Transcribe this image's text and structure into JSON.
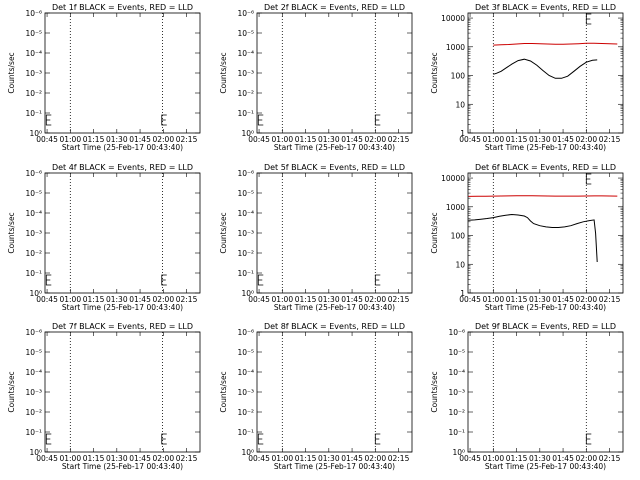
{
  "chart_data": [
    {
      "type": "line",
      "title": "Det 1f BLACK = Events, RED = LLD",
      "xlabel": "Start Time (25-Feb-17 00:43:40)",
      "ylabel": "Counts/sec",
      "x_ticks": [
        "00:45",
        "01:00",
        "01:15",
        "01:30",
        "01:45",
        "02:00",
        "02:15"
      ],
      "y_ticks": [
        "10⁰",
        "10⁻¹",
        "10⁻²",
        "10⁻³",
        "10⁻⁴",
        "10⁻⁵",
        "10⁻⁶"
      ],
      "x_range_min": [
        43.67,
        143.67
      ],
      "y_log": false,
      "vlines_min": [
        60.0,
        119.5
      ],
      "e_markers_min": [
        44.5,
        119.0
      ],
      "series": []
    },
    {
      "type": "line",
      "title": "Det 2f BLACK = Events, RED = LLD",
      "xlabel": "Start Time (25-Feb-17 00:43:40)",
      "ylabel": "Counts/sec",
      "x_ticks": [
        "00:45",
        "01:00",
        "01:15",
        "01:30",
        "01:45",
        "02:00",
        "02:15"
      ],
      "y_ticks": [
        "10⁰",
        "10⁻¹",
        "10⁻²",
        "10⁻³",
        "10⁻⁴",
        "10⁻⁵",
        "10⁻⁶"
      ],
      "x_range_min": [
        43.67,
        143.67
      ],
      "y_log": false,
      "vlines_min": [
        60.0,
        120.0
      ],
      "e_markers_min": [
        44.5,
        120.0
      ],
      "series": []
    },
    {
      "type": "line",
      "title": "Det 3f BLACK = Events, RED = LLD",
      "xlabel": "Start Time (25-Feb-17 00:43:40)",
      "ylabel": "Counts/sec",
      "x_ticks": [
        "00:45",
        "01:00",
        "01:15",
        "01:30",
        "01:45",
        "02:00",
        "02:15"
      ],
      "y_ticks": [
        "1",
        "10",
        "100",
        "1000",
        "10000"
      ],
      "x_range_min": [
        43.67,
        143.67
      ],
      "y_log": true,
      "y_range": [
        1,
        15000
      ],
      "vlines_min": [
        60.0,
        120.0
      ],
      "e_markers_min": [
        120.0
      ],
      "series": [
        {
          "color": "#cc0000",
          "x": [
            60,
            65,
            70,
            75,
            80,
            85,
            90,
            95,
            100,
            105,
            110,
            115,
            120,
            125,
            130,
            135,
            140
          ],
          "y": [
            1150,
            1180,
            1200,
            1250,
            1300,
            1300,
            1280,
            1250,
            1230,
            1230,
            1250,
            1280,
            1320,
            1320,
            1300,
            1280,
            1250
          ]
        },
        {
          "color": "#000000",
          "x": [
            60,
            62,
            65,
            68,
            72,
            76,
            80,
            84,
            88,
            92,
            96,
            100,
            104,
            108,
            112,
            116,
            120,
            124,
            127
          ],
          "y": [
            110,
            120,
            140,
            180,
            250,
            330,
            370,
            320,
            230,
            150,
            100,
            80,
            80,
            95,
            140,
            210,
            290,
            340,
            350
          ]
        }
      ]
    },
    {
      "type": "line",
      "title": "Det 4f BLACK = Events, RED = LLD",
      "xlabel": "Start Time (25-Feb-17 00:43:40)",
      "ylabel": "Counts/sec",
      "x_ticks": [
        "00:45",
        "01:00",
        "01:15",
        "01:30",
        "01:45",
        "02:00",
        "02:15"
      ],
      "y_ticks": [
        "10⁰",
        "10⁻¹",
        "10⁻²",
        "10⁻³",
        "10⁻⁴",
        "10⁻⁵",
        "10⁻⁶"
      ],
      "x_range_min": [
        43.67,
        143.67
      ],
      "y_log": false,
      "vlines_min": [
        60.0,
        119.5
      ],
      "e_markers_min": [
        44.5,
        119.0
      ],
      "series": []
    },
    {
      "type": "line",
      "title": "Det 5f BLACK = Events, RED = LLD",
      "xlabel": "Start Time (25-Feb-17 00:43:40)",
      "ylabel": "Counts/sec",
      "x_ticks": [
        "00:45",
        "01:00",
        "01:15",
        "01:30",
        "01:45",
        "02:00",
        "02:15"
      ],
      "y_ticks": [
        "10⁰",
        "10⁻¹",
        "10⁻²",
        "10⁻³",
        "10⁻⁴",
        "10⁻⁵",
        "10⁻⁶"
      ],
      "x_range_min": [
        43.67,
        143.67
      ],
      "y_log": false,
      "vlines_min": [
        60.0,
        120.0
      ],
      "e_markers_min": [
        44.5,
        120.0
      ],
      "series": []
    },
    {
      "type": "line",
      "title": "Det 6f BLACK = Events, RED = LLD",
      "xlabel": "Start Time (25-Feb-17 00:43:40)",
      "ylabel": "Counts/sec",
      "x_ticks": [
        "00:45",
        "01:00",
        "01:15",
        "01:30",
        "01:45",
        "02:00",
        "02:15"
      ],
      "y_ticks": [
        "1",
        "10",
        "100",
        "1000",
        "10000"
      ],
      "x_range_min": [
        43.67,
        143.67
      ],
      "y_log": true,
      "y_range": [
        1,
        15000
      ],
      "vlines_min": [
        60.0,
        120.0
      ],
      "e_markers_min": [
        120.0
      ],
      "series": [
        {
          "color": "#cc0000",
          "x": [
            44,
            50,
            55,
            60,
            65,
            70,
            75,
            80,
            85,
            90,
            95,
            100,
            105,
            110,
            115,
            120,
            125,
            130,
            135,
            140
          ],
          "y": [
            2300,
            2320,
            2340,
            2360,
            2380,
            2400,
            2420,
            2430,
            2420,
            2400,
            2380,
            2360,
            2350,
            2350,
            2360,
            2380,
            2400,
            2400,
            2380,
            2350
          ]
        },
        {
          "color": "#000000",
          "x": [
            44,
            48,
            52,
            56,
            60,
            64,
            68,
            72,
            76,
            80,
            82,
            84,
            86,
            90,
            94,
            98,
            102,
            106,
            110,
            114,
            118,
            122,
            125,
            126,
            127
          ],
          "y": [
            340,
            350,
            370,
            390,
            420,
            470,
            510,
            540,
            520,
            480,
            420,
            320,
            260,
            220,
            200,
            190,
            190,
            200,
            220,
            260,
            300,
            330,
            350,
            120,
            12
          ]
        }
      ]
    },
    {
      "type": "line",
      "title": "Det 7f BLACK = Events, RED = LLD",
      "xlabel": "Start Time (25-Feb-17 00:43:40)",
      "ylabel": "Counts/sec",
      "x_ticks": [
        "00:45",
        "01:00",
        "01:15",
        "01:30",
        "01:45",
        "02:00",
        "02:15"
      ],
      "y_ticks": [
        "10⁰",
        "10⁻¹",
        "10⁻²",
        "10⁻³",
        "10⁻⁴",
        "10⁻⁵",
        "10⁻⁶"
      ],
      "x_range_min": [
        43.67,
        143.67
      ],
      "y_log": false,
      "vlines_min": [
        60.0,
        119.5
      ],
      "e_markers_min": [
        44.5,
        119.0
      ],
      "series": []
    },
    {
      "type": "line",
      "title": "Det 8f BLACK = Events, RED = LLD",
      "xlabel": "Start Time (25-Feb-17 00:43:40)",
      "ylabel": "Counts/sec",
      "x_ticks": [
        "00:45",
        "01:00",
        "01:15",
        "01:30",
        "01:45",
        "02:00",
        "02:15"
      ],
      "y_ticks": [
        "10⁰",
        "10⁻¹",
        "10⁻²",
        "10⁻³",
        "10⁻⁴",
        "10⁻⁵",
        "10⁻⁶"
      ],
      "x_range_min": [
        43.67,
        143.67
      ],
      "y_log": false,
      "vlines_min": [
        60.0,
        120.0
      ],
      "e_markers_min": [
        44.5,
        120.0
      ],
      "series": []
    },
    {
      "type": "line",
      "title": "Det 9f BLACK = Events, RED = LLD",
      "xlabel": "Start Time (25-Feb-17 00:43:40)",
      "ylabel": "Counts/sec",
      "x_ticks": [
        "00:45",
        "01:00",
        "01:15",
        "01:30",
        "01:45",
        "02:00",
        "02:15"
      ],
      "y_ticks": [
        "10⁰",
        "10⁻¹",
        "10⁻²",
        "10⁻³",
        "10⁻⁴",
        "10⁻⁵",
        "10⁻⁶"
      ],
      "x_range_min": [
        43.67,
        143.67
      ],
      "y_log": false,
      "vlines_min": [
        60.0,
        120.0
      ],
      "e_markers_min": [
        120.0
      ],
      "series": []
    }
  ]
}
